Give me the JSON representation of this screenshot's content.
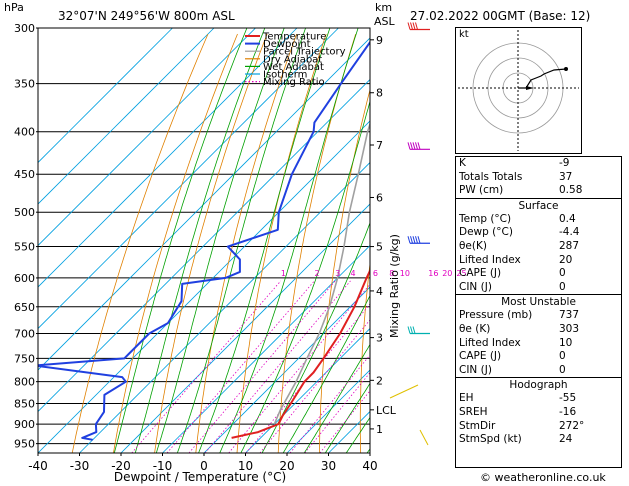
{
  "header": {
    "hpa_label": "hPa",
    "location": "32°07'N  249°56'W  800m  ASL",
    "km_label": "km",
    "asl_label": "ASL",
    "datetime": "27.02.2022  00GMT  (Base: 12)"
  },
  "footer": {
    "copyright": "© weatheronline.co.uk"
  },
  "chart_data": {
    "type": "line",
    "title": "",
    "xlabel": "Dewpoint / Temperature (°C)",
    "ylabel": "hPa",
    "xlim": [
      -40,
      40
    ],
    "ylim": [
      975,
      300
    ],
    "log_y": true,
    "x_ticks": [
      -40,
      -30,
      -20,
      -10,
      0,
      10,
      20,
      30,
      40
    ],
    "pressure_ticks": [
      300,
      350,
      400,
      450,
      500,
      550,
      600,
      650,
      700,
      750,
      800,
      850,
      900,
      950
    ],
    "km_ticks": [
      {
        "label": "9",
        "p": 310
      },
      {
        "label": "8",
        "p": 359
      },
      {
        "label": "7",
        "p": 415
      },
      {
        "label": "6",
        "p": 480
      },
      {
        "label": "5",
        "p": 550
      },
      {
        "label": "4",
        "p": 622
      },
      {
        "label": "3",
        "p": 708
      },
      {
        "label": "2",
        "p": 797
      },
      {
        "label": "LCL",
        "p": 865
      },
      {
        "label": "1",
        "p": 912
      }
    ],
    "right_axis_label": "Mixing Ratio (g/kg)",
    "mixing_ratio_labels": [
      "1",
      "2",
      "3",
      "4",
      "6",
      "8",
      "10",
      "16",
      "20",
      "25"
    ],
    "legend": [
      "Temperature",
      "Dewpoint",
      "Parcel Trajectory",
      "Dry Adiabat",
      "Wet Adiabat",
      "Isotherm",
      "Mixing Ratio"
    ],
    "legend_colors": [
      "#e02020",
      "#2040e0",
      "#a0a0a0",
      "#e08000",
      "#00a000",
      "#00a0e0",
      "#e000c0"
    ],
    "series": [
      {
        "name": "Temperature",
        "color": "#e02020",
        "points": [
          [
            300,
            -42
          ],
          [
            350,
            -33
          ],
          [
            390,
            -26
          ],
          [
            400,
            -25
          ],
          [
            450,
            -18
          ],
          [
            500,
            -12
          ],
          [
            550,
            -7
          ],
          [
            600,
            -3
          ],
          [
            650,
            1
          ],
          [
            700,
            4
          ],
          [
            750,
            6
          ],
          [
            780,
            7
          ],
          [
            800,
            7
          ],
          [
            850,
            9
          ],
          [
            880,
            10
          ],
          [
            900,
            11
          ],
          [
            920,
            8
          ],
          [
            935,
            3
          ]
        ]
      },
      {
        "name": "Dewpoint",
        "color": "#2040e0",
        "points": [
          [
            300,
            -60
          ],
          [
            350,
            -56
          ],
          [
            390,
            -53
          ],
          [
            400,
            -51
          ],
          [
            450,
            -46
          ],
          [
            500,
            -40
          ],
          [
            525,
            -36
          ],
          [
            550,
            -44
          ],
          [
            570,
            -38
          ],
          [
            590,
            -35
          ],
          [
            600,
            -37
          ],
          [
            610,
            -46
          ],
          [
            640,
            -42
          ],
          [
            680,
            -40
          ],
          [
            700,
            -42
          ],
          [
            750,
            -42
          ],
          [
            765,
            -62
          ],
          [
            790,
            -38
          ],
          [
            800,
            -36
          ],
          [
            830,
            -38
          ],
          [
            870,
            -34
          ],
          [
            900,
            -33
          ],
          [
            920,
            -31
          ],
          [
            935,
            -33
          ],
          [
            940,
            -30
          ]
        ]
      },
      {
        "name": "Parcel Trajectory",
        "color": "#a0a0a0",
        "points": [
          [
            300,
            -55
          ],
          [
            350,
            -46
          ],
          [
            400,
            -38
          ],
          [
            450,
            -30
          ],
          [
            500,
            -23
          ],
          [
            550,
            -16
          ],
          [
            600,
            -10
          ],
          [
            650,
            -5
          ],
          [
            700,
            -1
          ],
          [
            750,
            2
          ],
          [
            800,
            5
          ],
          [
            865,
            8
          ],
          [
            900,
            10
          ]
        ]
      }
    ]
  },
  "hodograph": {
    "label": "kt"
  },
  "indices": {
    "rows": [
      {
        "k": "K",
        "v": "-9"
      },
      {
        "k": "Totals Totals",
        "v": "37"
      },
      {
        "k": "PW (cm)",
        "v": "0.58"
      }
    ],
    "surface": {
      "title": "Surface",
      "rows": [
        {
          "k": "Temp (°C)",
          "v": "0.4"
        },
        {
          "k": "Dewp (°C)",
          "v": "-4.4"
        },
        {
          "k": "θe(K)",
          "v": "287"
        },
        {
          "k": "Lifted Index",
          "v": "20"
        },
        {
          "k": "CAPE (J)",
          "v": "0"
        },
        {
          "k": "CIN (J)",
          "v": "0"
        }
      ]
    },
    "most_unstable": {
      "title": "Most Unstable",
      "rows": [
        {
          "k": "Pressure (mb)",
          "v": "737"
        },
        {
          "k": "θe (K)",
          "v": "303"
        },
        {
          "k": "Lifted Index",
          "v": "10"
        },
        {
          "k": "CAPE (J)",
          "v": "0"
        },
        {
          "k": "CIN (J)",
          "v": "0"
        }
      ]
    },
    "hodograph": {
      "title": "Hodograph",
      "rows": [
        {
          "k": "EH",
          "v": "-55"
        },
        {
          "k": "SREH",
          "v": "-16"
        },
        {
          "k": "StmDir",
          "v": "272°"
        },
        {
          "k": "StmSpd (kt)",
          "v": "24"
        }
      ]
    }
  }
}
